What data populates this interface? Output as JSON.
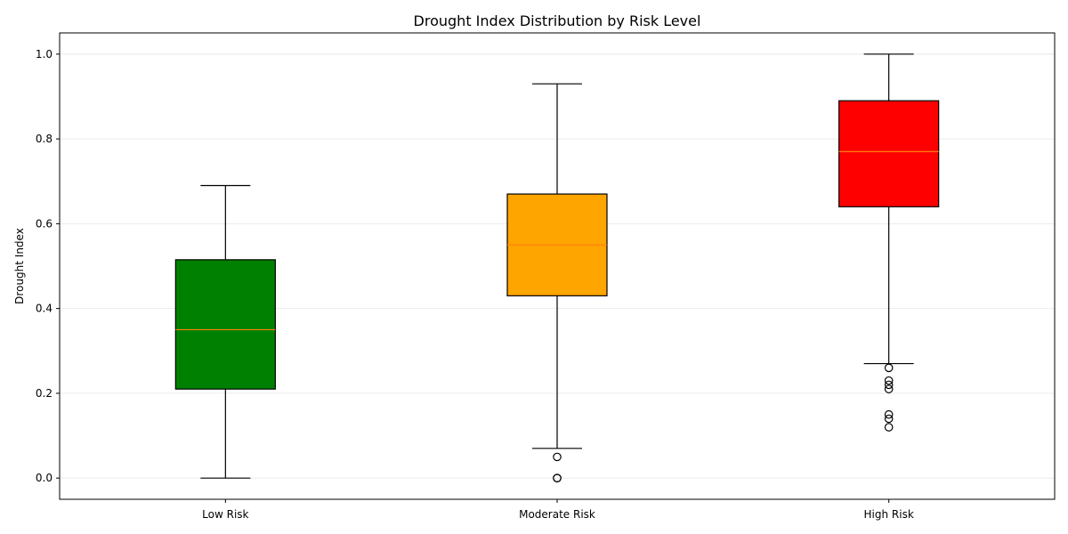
{
  "chart_data": {
    "type": "box",
    "title": "Drought Index Distribution by Risk Level",
    "xlabel": "",
    "ylabel": "Drought Index",
    "ylim": [
      -0.05,
      1.05
    ],
    "yticks": [
      "0.0",
      "0.2",
      "0.4",
      "0.6",
      "0.8",
      "1.0"
    ],
    "grid": "y",
    "categories": [
      "Low Risk",
      "Moderate Risk",
      "High Risk"
    ],
    "boxes": [
      {
        "category": "Low Risk",
        "whisker_low": 0.0,
        "q1": 0.21,
        "median": 0.35,
        "q3": 0.515,
        "whisker_high": 0.69,
        "outliers": [],
        "color": "#008000"
      },
      {
        "category": "Moderate Risk",
        "whisker_low": 0.07,
        "q1": 0.43,
        "median": 0.55,
        "q3": 0.67,
        "whisker_high": 0.93,
        "outliers": [
          0.05,
          0.0,
          0.0
        ],
        "color": "#ffa500"
      },
      {
        "category": "High Risk",
        "whisker_low": 0.27,
        "q1": 0.64,
        "median": 0.77,
        "q3": 0.89,
        "whisker_high": 1.0,
        "outliers": [
          0.26,
          0.23,
          0.22,
          0.21,
          0.15,
          0.14,
          0.12
        ],
        "color": "#ff0000"
      }
    ],
    "median_color": "#ff7f0e"
  }
}
